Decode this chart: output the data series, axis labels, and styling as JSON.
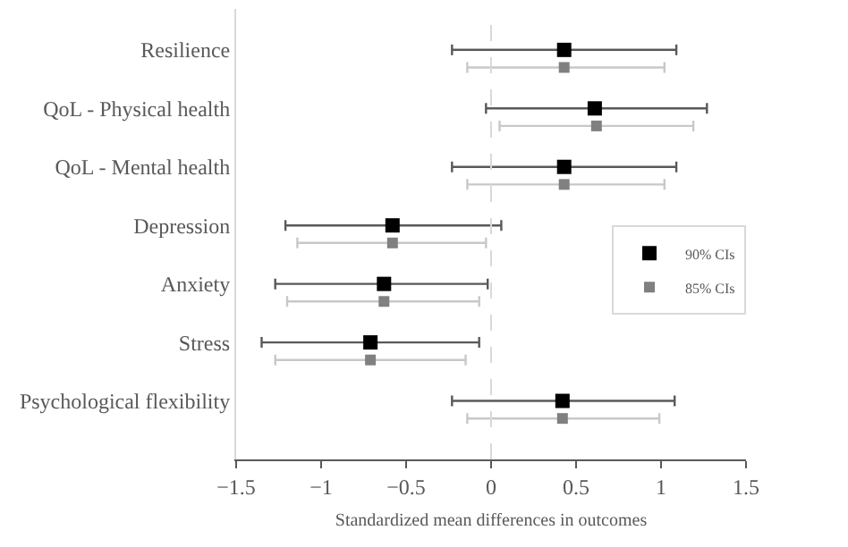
{
  "chart_data": {
    "type": "scatter",
    "orientation": "horizontal",
    "xlabel": "Standardized mean differences in outcomes",
    "categories": [
      "Resilience",
      "QoL - Physical health",
      "QoL - Mental health",
      "Depression",
      "Anxiety",
      "Stress",
      "Psychological flexibility"
    ],
    "series": [
      {
        "name": "90% CIs",
        "color": "#000000",
        "values": [
          0.43,
          0.61,
          0.43,
          -0.58,
          -0.63,
          -0.71,
          0.42
        ],
        "errors": [
          [
            -0.23,
            1.09
          ],
          [
            -0.03,
            1.27
          ],
          [
            -0.23,
            1.09
          ],
          [
            -1.21,
            0.06
          ],
          [
            -1.27,
            -0.02
          ],
          [
            -1.35,
            -0.07
          ],
          [
            -0.23,
            1.08
          ]
        ]
      },
      {
        "name": "85% CIs",
        "color": "#808080",
        "values": [
          0.43,
          0.62,
          0.43,
          -0.58,
          -0.63,
          -0.71,
          0.42
        ],
        "errors": [
          [
            -0.14,
            1.02
          ],
          [
            0.05,
            1.19
          ],
          [
            -0.14,
            1.02
          ],
          [
            -1.14,
            -0.03
          ],
          [
            -1.2,
            -0.07
          ],
          [
            -1.27,
            -0.15
          ],
          [
            -0.14,
            0.99
          ]
        ]
      }
    ],
    "xlim": [
      -1.5,
      1.5
    ],
    "xticks": [
      {
        "value": -1.5,
        "label": "−1.5"
      },
      {
        "value": -1,
        "label": "−1"
      },
      {
        "value": -0.5,
        "label": "−0.5"
      },
      0,
      0.5,
      1,
      1.5
    ],
    "ref_lines": [
      {
        "axis": "x",
        "value": 0,
        "color": "#d9d9d9",
        "line_style": "dashed"
      }
    ],
    "marker": "square",
    "legend": "right",
    "grid": false
  }
}
